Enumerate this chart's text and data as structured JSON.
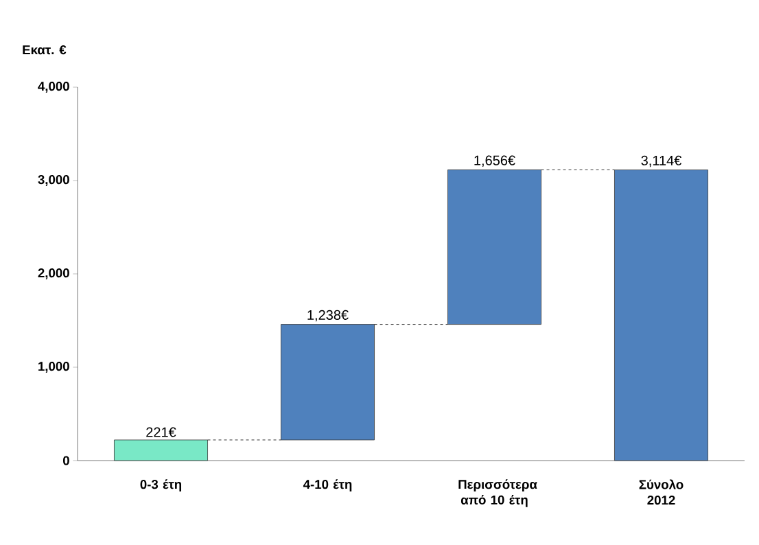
{
  "chart_data": {
    "type": "bar",
    "ylabel": "Εκατ. €",
    "categories": [
      "0-3 έτη",
      "4-10 έτη",
      "Περισσότερα από 10 έτη",
      "Σύνολο 2012"
    ],
    "values": [
      221,
      1238,
      1656,
      3114
    ],
    "base": [
      0,
      221,
      1459,
      0
    ],
    "colors": [
      "#79e8c6",
      "#4f81bd",
      "#4f81bd",
      "#4f81bd"
    ],
    "value_labels": [
      "221€",
      "1,238€",
      "1,656€",
      "3,114€"
    ],
    "ref_lines": [
      {
        "axis": "y",
        "value": 221,
        "line_style": "dashed",
        "color": "#000000"
      },
      {
        "axis": "y",
        "value": 1459,
        "line_style": "dashed",
        "color": "#000000"
      },
      {
        "axis": "y",
        "value": 3115,
        "line_style": "dashed",
        "color": "#000000"
      }
    ],
    "ylim": [
      0,
      4000
    ],
    "yticks": [
      0,
      {
        "value": 1000,
        "label": "1,000"
      },
      {
        "value": 2000,
        "label": "2,000"
      },
      {
        "value": 3000,
        "label": "3,000"
      },
      {
        "value": 4000,
        "label": "4,000"
      }
    ],
    "grid": false
  }
}
